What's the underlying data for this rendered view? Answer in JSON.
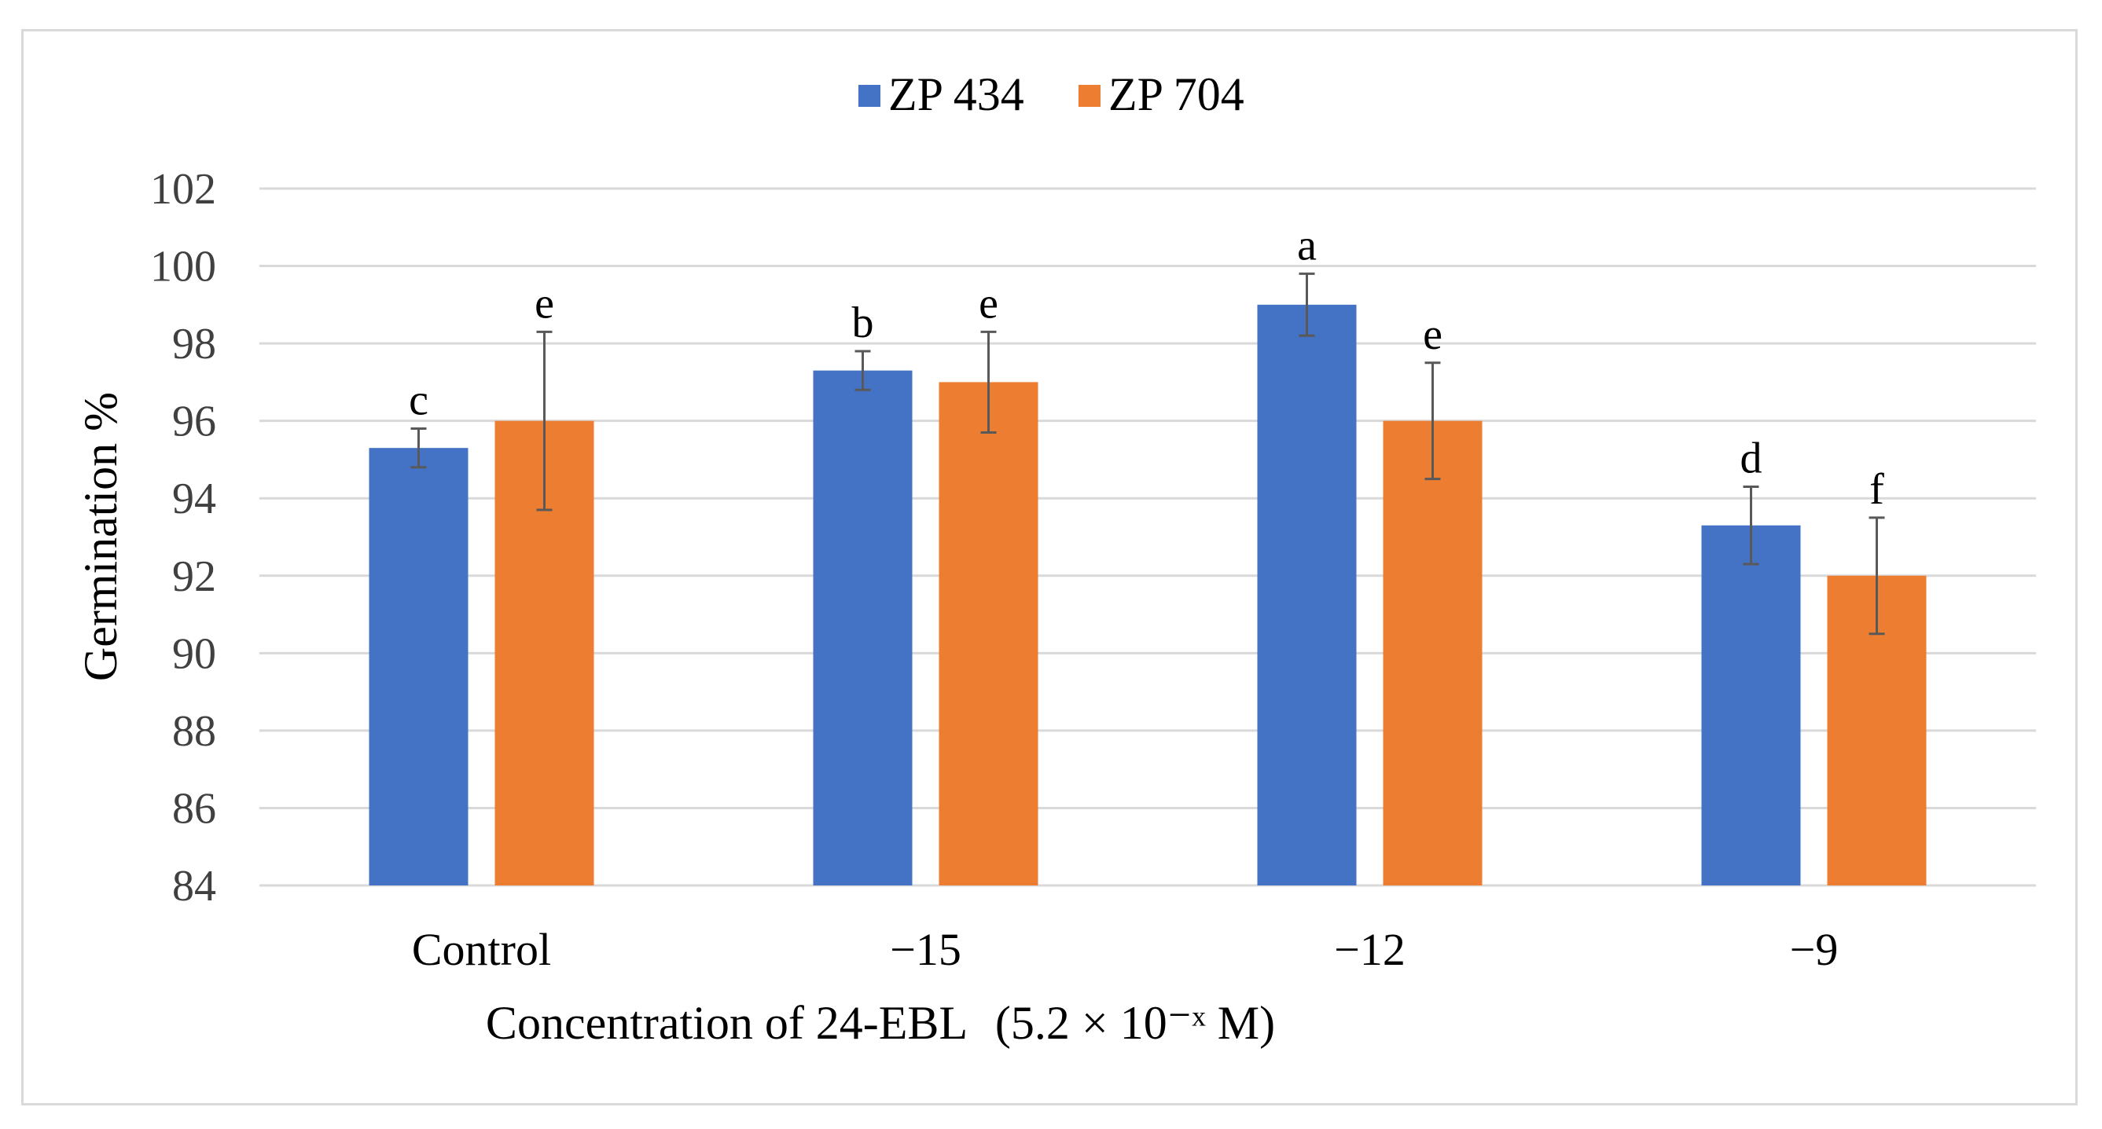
{
  "chart_data": {
    "type": "bar",
    "title": "",
    "categories": [
      "Control",
      "−15",
      "−12",
      "−9"
    ],
    "series": [
      {
        "name": "ZP 434",
        "color": "#4472c4",
        "values": [
          95.3,
          97.3,
          99.0,
          93.3
        ],
        "errors": [
          0.5,
          0.5,
          0.8,
          1.0
        ],
        "letters": [
          "c",
          "b",
          "a",
          "d"
        ]
      },
      {
        "name": "ZP 704",
        "color": "#ed7d31",
        "values": [
          96.0,
          97.0,
          96.0,
          92.0
        ],
        "errors": [
          2.3,
          1.3,
          1.5,
          1.5
        ],
        "letters": [
          "e",
          "e",
          "e",
          "f"
        ]
      }
    ],
    "xlabel": "Concentration of 24-EBL",
    "xlabel_unit": "(5.2 × 10⁻ˣ M)",
    "ylabel": "Germination %",
    "ylim": [
      84,
      102
    ],
    "yticks": [
      84,
      86,
      88,
      90,
      92,
      94,
      96,
      98,
      100,
      102
    ],
    "grid": true,
    "legend_position": "top-center"
  }
}
